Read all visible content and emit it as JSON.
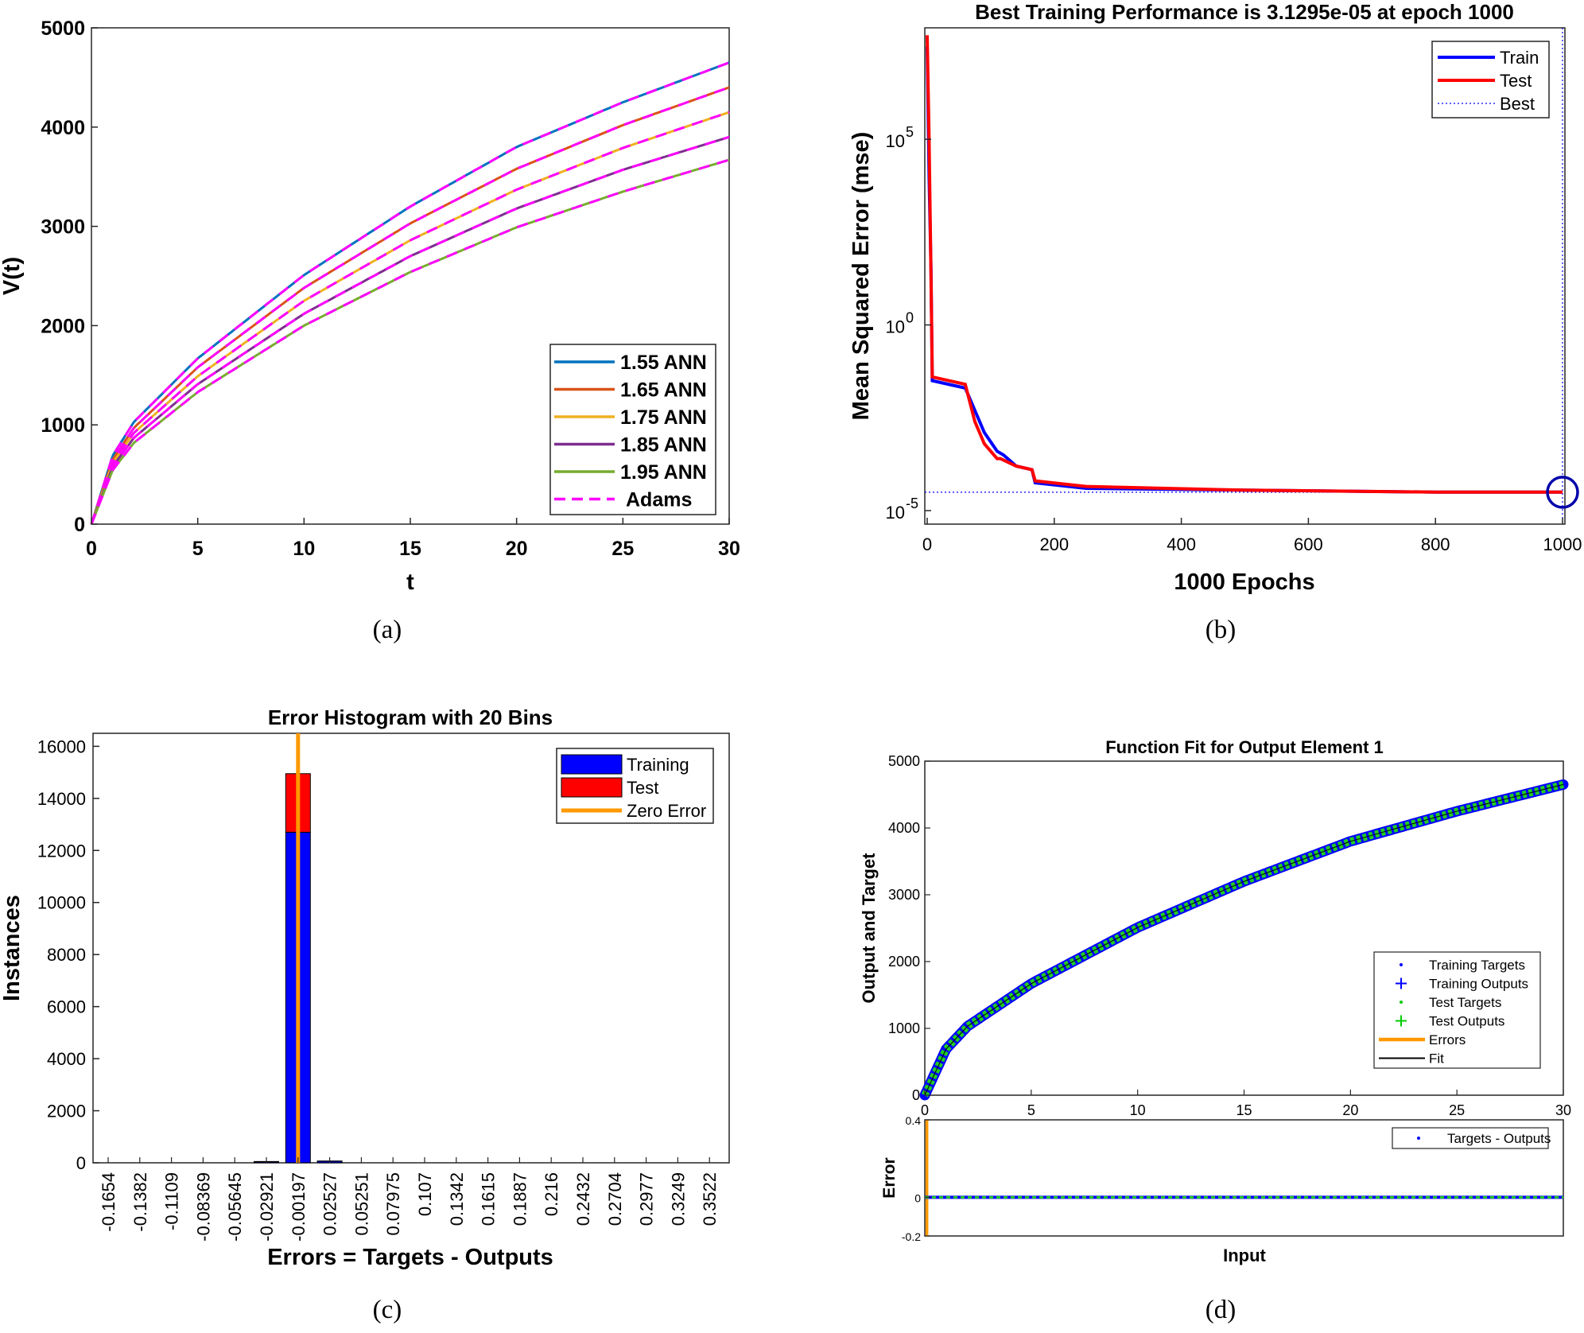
{
  "chart_data": [
    {
      "type": "line",
      "caption": "(a)",
      "xlabel": "t",
      "ylabel": "V(t)",
      "xlim": [
        0,
        30
      ],
      "ylim": [
        0,
        5000
      ],
      "xticks": [
        0,
        5,
        10,
        15,
        20,
        25,
        30
      ],
      "yticks": [
        0,
        1000,
        2000,
        3000,
        4000,
        5000
      ],
      "legend_position": "bottom-right",
      "series": [
        {
          "name": "1.55 ANN",
          "color": "#0072BD",
          "x": [
            0,
            1,
            2,
            5,
            10,
            15,
            20,
            25,
            30
          ],
          "y": [
            0,
            690,
            1030,
            1670,
            2510,
            3200,
            3800,
            4250,
            4650
          ]
        },
        {
          "name": "1.65 ANN",
          "color": "#D95319",
          "x": [
            0,
            1,
            2,
            5,
            10,
            15,
            20,
            25,
            30
          ],
          "y": [
            0,
            650,
            970,
            1580,
            2380,
            3030,
            3580,
            4020,
            4400
          ]
        },
        {
          "name": "1.75 ANN",
          "color": "#EDB120",
          "x": [
            0,
            1,
            2,
            5,
            10,
            15,
            20,
            25,
            30
          ],
          "y": [
            0,
            615,
            920,
            1490,
            2250,
            2860,
            3370,
            3790,
            4150
          ]
        },
        {
          "name": "1.85 ANN",
          "color": "#7E2F8E",
          "x": [
            0,
            1,
            2,
            5,
            10,
            15,
            20,
            25,
            30
          ],
          "y": [
            0,
            580,
            870,
            1410,
            2120,
            2700,
            3180,
            3570,
            3900
          ]
        },
        {
          "name": "1.95 ANN",
          "color": "#77AC30",
          "x": [
            0,
            1,
            2,
            5,
            10,
            15,
            20,
            25,
            30
          ],
          "y": [
            0,
            545,
            820,
            1330,
            2000,
            2540,
            2990,
            3350,
            3670
          ]
        },
        {
          "name": "Adams",
          "color": "#FF00FF",
          "style": "dashed"
        }
      ]
    },
    {
      "type": "line",
      "caption": "(b)",
      "title": "Best Training Performance is 3.1295e-05 at epoch 1000",
      "xlabel": "1000 Epochs",
      "ylabel": "Mean Squared Error  (mse)",
      "yscale": "log",
      "xlim": [
        0,
        1000
      ],
      "ylim_log10": [
        -5,
        8
      ],
      "xticks": [
        0,
        200,
        400,
        600,
        800,
        1000
      ],
      "yticks": [
        {
          "base": "10",
          "exp": "-5",
          "log10": -5
        },
        {
          "base": "10",
          "exp": "0",
          "log10": 0
        },
        {
          "base": "10",
          "exp": "5",
          "log10": 5
        }
      ],
      "legend_position": "top-right",
      "best_epoch": 1000,
      "best_mse": 3.1295e-05,
      "series": [
        {
          "name": "Train",
          "color": "#0000FF",
          "x": [
            0,
            3,
            6,
            8,
            60,
            90,
            110,
            120,
            140,
            165,
            170,
            250,
            500,
            800,
            1000
          ],
          "log10_y": [
            7.5,
            4,
            1.5,
            -1.5,
            -1.7,
            -2.9,
            -3.4,
            -3.5,
            -3.8,
            -3.9,
            -4.25,
            -4.4,
            -4.45,
            -4.5,
            -4.5
          ]
        },
        {
          "name": "Test",
          "color": "#FF0000",
          "x": [
            0,
            3,
            6,
            8,
            60,
            75,
            90,
            110,
            115,
            140,
            165,
            170,
            250,
            500,
            800,
            1000
          ],
          "log10_y": [
            7.8,
            5,
            1.3,
            -1.4,
            -1.6,
            -2.6,
            -3.2,
            -3.6,
            -3.6,
            -3.8,
            -3.9,
            -4.2,
            -4.35,
            -4.45,
            -4.5,
            -4.5
          ]
        },
        {
          "name": "Best",
          "color": "#0000FF",
          "style": "dotted"
        }
      ]
    },
    {
      "type": "bar",
      "caption": "(c)",
      "title": "Error Histogram with 20 Bins",
      "xlabel": "Errors = Targets - Outputs",
      "ylabel": "Instances",
      "ylim": [
        0,
        16500
      ],
      "yticks": [
        0,
        2000,
        4000,
        6000,
        8000,
        10000,
        12000,
        14000,
        16000
      ],
      "categories": [
        "-0.1654",
        "-0.1382",
        "-0.1109",
        "-0.08369",
        "-0.05645",
        "-0.02921",
        "-0.00197",
        "0.02527",
        "0.05251",
        "0.07975",
        "0.107",
        "0.1342",
        "0.1615",
        "0.1887",
        "0.216",
        "0.2432",
        "0.2704",
        "0.2977",
        "0.3249",
        "0.3522"
      ],
      "zero_error_bin": 6,
      "legend_position": "top-right",
      "series": [
        {
          "name": "Training",
          "color": "#0000FF",
          "values": [
            0,
            0,
            0,
            0,
            0,
            40,
            12700,
            60,
            0,
            0,
            0,
            0,
            0,
            0,
            0,
            0,
            0,
            0,
            0,
            0
          ]
        },
        {
          "name": "Test",
          "color": "#FF0000",
          "values": [
            0,
            0,
            0,
            0,
            0,
            10,
            2250,
            10,
            0,
            0,
            0,
            0,
            0,
            0,
            0,
            0,
            0,
            0,
            0,
            0
          ]
        },
        {
          "name": "Zero Error",
          "color": "#FF9900"
        }
      ]
    },
    {
      "type": "scatter",
      "caption": "(d)",
      "title": "Function Fit for Output Element 1",
      "xlabel": "Input",
      "ylabel": "Output and Target",
      "xlim": [
        0,
        30
      ],
      "ylim": [
        0,
        5000
      ],
      "xticks": [
        0,
        5,
        10,
        15,
        20,
        25,
        30
      ],
      "yticks": [
        0,
        1000,
        2000,
        3000,
        4000,
        5000
      ],
      "legend_position": "bottom-right",
      "fit": {
        "x": [
          0,
          1,
          2,
          5,
          10,
          15,
          20,
          25,
          30
        ],
        "y": [
          0,
          690,
          1030,
          1670,
          2510,
          3200,
          3800,
          4250,
          4650
        ]
      },
      "series": [
        {
          "name": "Training Targets",
          "color": "#0000FF",
          "marker": "dot"
        },
        {
          "name": "Training Outputs",
          "color": "#0000FF",
          "marker": "plus"
        },
        {
          "name": "Test Targets",
          "color": "#00CC00",
          "marker": "dot"
        },
        {
          "name": "Test Outputs",
          "color": "#00CC00",
          "marker": "plus"
        },
        {
          "name": "Errors",
          "color": "#FF9900"
        },
        {
          "name": "Fit",
          "color": "#000000"
        }
      ],
      "error_panel": {
        "ylabel": "Error",
        "ylim": [
          -0.2,
          0.4
        ],
        "yticks": [
          -0.2,
          0,
          0.4
        ],
        "legend": "Targets - Outputs",
        "legend_position": "top-right"
      }
    }
  ]
}
